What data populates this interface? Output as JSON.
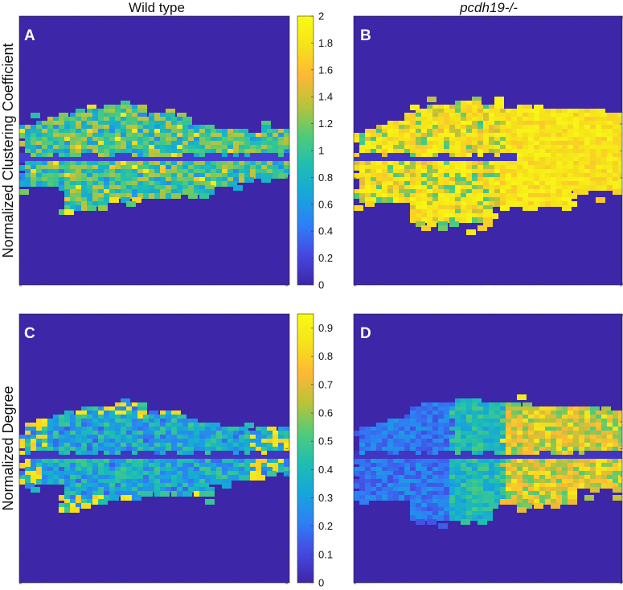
{
  "columns": {
    "left_title": "Wild type",
    "right_title": "pcdh19-/-"
  },
  "rows": {
    "top_label": "Normalized Clustering Coefficient",
    "bottom_label": "Normalized Degree"
  },
  "colors": {
    "background": "#3e26a8",
    "parula_stops": [
      "#3e26a8",
      "#4648e0",
      "#2f7ef6",
      "#16a6db",
      "#1ebeb2",
      "#50cb79",
      "#b9c33a",
      "#feb736",
      "#f5e21a",
      "#f9fb15"
    ]
  },
  "chart_data": [
    {
      "type": "heatmap",
      "panel": "A",
      "column": "Wild type",
      "row": "Normalized Clustering Coefficient",
      "colorbar": {
        "range": [
          0,
          2
        ],
        "ticks": [
          "0",
          "0.2",
          "0.4",
          "0.6",
          "0.8",
          "1",
          "1.2",
          "1.4",
          "1.6",
          "1.8",
          "2"
        ]
      },
      "dominant_value": 1.05
    },
    {
      "type": "heatmap",
      "panel": "B",
      "column": "pcdh19-/-",
      "row": "Normalized Clustering Coefficient",
      "colorbar": {
        "range": [
          0,
          2
        ]
      },
      "dominant_value": 1.85
    },
    {
      "type": "heatmap",
      "panel": "C",
      "column": "Wild type",
      "row": "Normalized Degree",
      "colorbar": {
        "range": [
          0,
          0.95
        ],
        "ticks": [
          "0",
          "0.1",
          "0.2",
          "0.3",
          "0.4",
          "0.5",
          "0.6",
          "0.7",
          "0.8",
          "0.9"
        ]
      },
      "dominant_value": 0.4
    },
    {
      "type": "heatmap",
      "panel": "D",
      "column": "pcdh19-/-",
      "row": "Normalized Degree",
      "colorbar": {
        "range": [
          0,
          0.95
        ]
      },
      "dominant_value": 0.45
    }
  ]
}
